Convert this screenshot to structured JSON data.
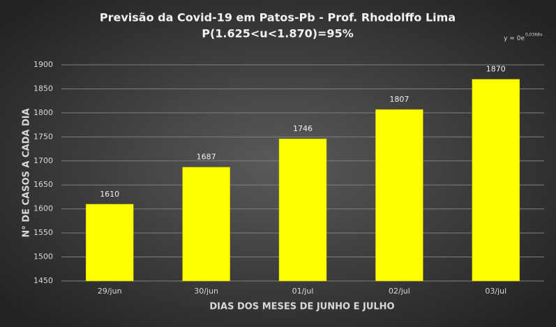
{
  "chart_data": {
    "type": "bar",
    "title": "Previsão da Covid-19 em Patos-Pb - Prof. Rhodolffo Lima",
    "subtitle": "P(1.625<u<1.870)=95%",
    "annotation": "y = 0e",
    "annotation_exponent": "0,0368x",
    "x_label": "DIAS DOS MESES DE JUNHO E JULHO",
    "y_label": "N° DE CASOS A CADA DIA",
    "categories": [
      "29/jun",
      "30/jun",
      "01/jul",
      "02/jul",
      "03/jul"
    ],
    "values": [
      1610,
      1687,
      1746,
      1807,
      1870
    ],
    "color": "#ffff00",
    "ylim": [
      1450,
      1900
    ],
    "yticks": [
      1450,
      1500,
      1550,
      1600,
      1650,
      1700,
      1750,
      1800,
      1850,
      1900
    ],
    "grid": true
  }
}
